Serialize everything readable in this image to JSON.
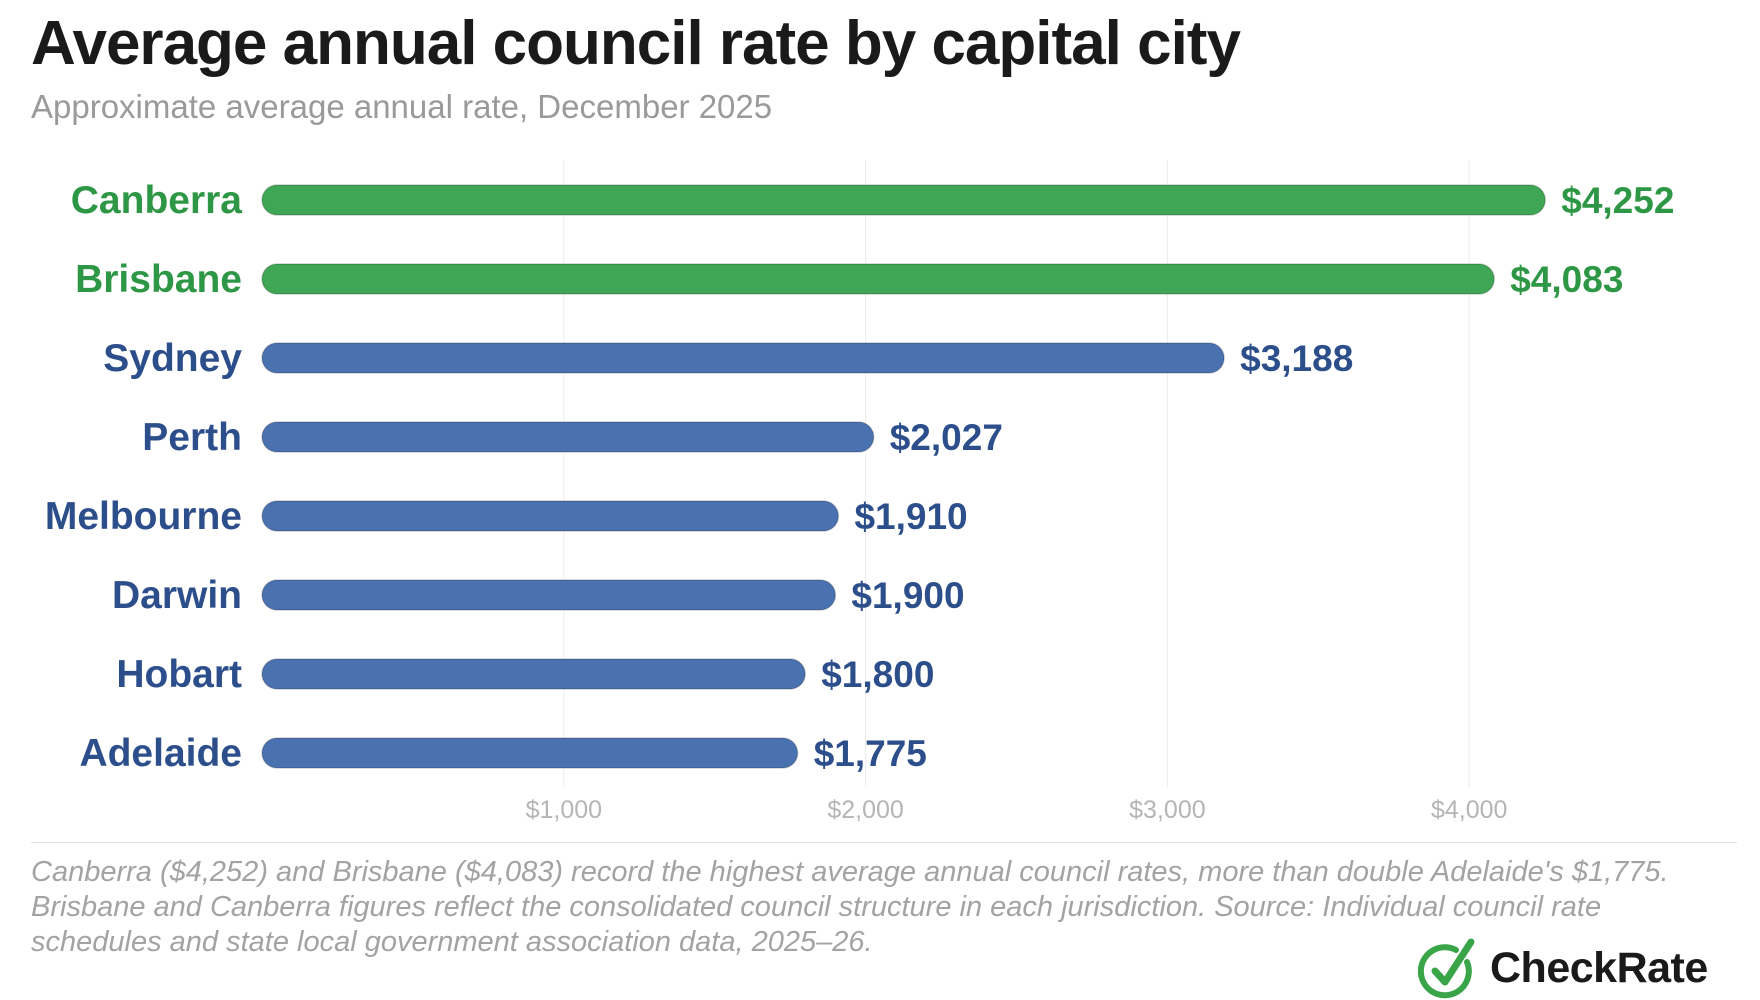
{
  "title": "Average annual council rate by capital city",
  "subtitle": "Approximate average annual rate, December 2025",
  "footnote": "Canberra ($4,252) and Brisbane ($4,083) record the highest average annual council rates, more than double Adelaide's $1,775. Brisbane and Canberra figures reflect the consolidated council structure in each jurisdiction. Source: Individual council rate schedules and state local government association data, 2025–26.",
  "logo": {
    "text": "CheckRate",
    "icon": "check-circle-icon",
    "color": "#3aa548"
  },
  "colors": {
    "highlight": "#3fa655",
    "default": "#4a72b0",
    "highlight_label": "#2e9746",
    "default_label": "#2c4f8c",
    "tick": "#b5b5b5",
    "grid": "#ececec"
  },
  "chart_data": {
    "type": "bar",
    "orientation": "horizontal",
    "categories": [
      "Canberra",
      "Brisbane",
      "Sydney",
      "Perth",
      "Melbourne",
      "Darwin",
      "Hobart",
      "Adelaide"
    ],
    "values": [
      4252,
      4083,
      3188,
      2027,
      1910,
      1900,
      1800,
      1775
    ],
    "value_labels": [
      "$4,252",
      "$4,083",
      "$3,188",
      "$2,027",
      "$1,910",
      "$1,900",
      "$1,800",
      "$1,775"
    ],
    "highlight": [
      true,
      true,
      false,
      false,
      false,
      false,
      false,
      false
    ],
    "xticks": [
      1000,
      2000,
      3000,
      4000
    ],
    "xtick_labels": [
      "$1,000",
      "$2,000",
      "$3,000",
      "$4,000"
    ],
    "xlim": [
      0,
      4600
    ],
    "title": "Average annual council rate by capital city",
    "subtitle": "Approximate average annual rate, December 2025",
    "xlabel": "",
    "ylabel": "",
    "grid": true,
    "legend": "none"
  }
}
